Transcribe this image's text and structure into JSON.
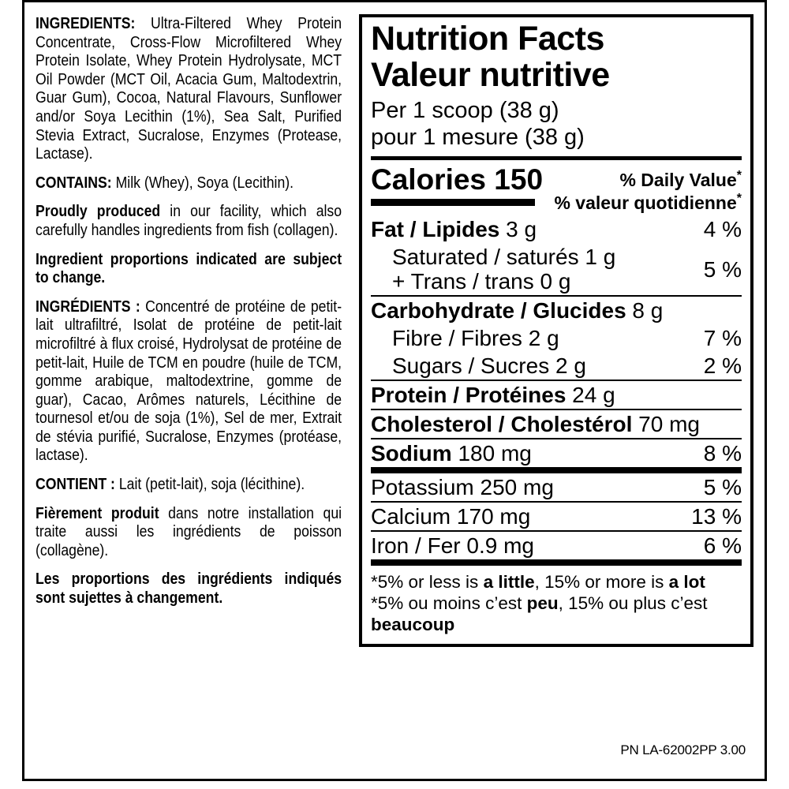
{
  "ingredients": {
    "paragraphs": [
      {
        "id": "ingredients-en",
        "lead": "INGREDIENTS:",
        "bold_all": false,
        "text": "Ultra-Filtered Whey Protein Concentrate, Cross-Flow Microfiltered Whey Protein Isolate, Whey Protein Hydrolysate, MCT Oil Powder (MCT Oil, Acacia Gum, Maltodextrin, Guar Gum), Cocoa, Natural Flavours, Sunflower and/or Soya Lecithin (1%), Sea Salt, Purified Stevia Extract, Sucralose, Enzymes (Protease, Lactase)."
      },
      {
        "id": "contains-en",
        "lead": "CONTAINS:",
        "bold_all": false,
        "text": "Milk (Whey), Soya (Lecithin)."
      },
      {
        "id": "facility-en",
        "lead": "Proudly produced",
        "bold_all": false,
        "text": "in our facility, which also carefully handles ingredients from fish (collagen)."
      },
      {
        "id": "proportions-en",
        "lead": "",
        "bold_all": true,
        "text": "Ingredient proportions indicated are subject to change."
      },
      {
        "id": "ingredients-fr",
        "lead": "INGRÉDIENTS :",
        "bold_all": false,
        "text": "Concentré de protéine de petit-lait ultrafiltré, Isolat de protéine de petit-lait microfiltré à flux croisé, Hydrolysat de protéine de petit-lait, Huile de TCM en poudre (huile de TCM, gomme arabique, maltodextrine, gomme de guar), Cacao, Arômes naturels, Lécithine de tournesol et/ou de soja (1%), Sel de mer, Extrait de stévia purifié, Sucralose, Enzymes (protéase, lactase)."
      },
      {
        "id": "contains-fr",
        "lead": "CONTIENT :",
        "bold_all": false,
        "text": "Lait (petit-lait), soja (lécithine)."
      },
      {
        "id": "facility-fr",
        "lead": "Fièrement produit",
        "bold_all": false,
        "text": "dans notre installation qui traite aussi les ingrédients de poisson (collagène)."
      },
      {
        "id": "proportions-fr",
        "lead": "",
        "bold_all": true,
        "text": "Les proportions des ingrédients indiqués sont sujettes à changement."
      }
    ]
  },
  "nutrition_panel": {
    "title_en": "Nutrition Facts",
    "title_fr": "Valeur nutritive",
    "serving_en": "Per 1 scoop (38 g)",
    "serving_fr": "pour 1 mesure (38 g)",
    "calories_label": "Calories",
    "calories_value": "150",
    "dv_header_en": "% Daily Value",
    "dv_header_fr": "% valeur quotidienne",
    "dv_asterisk": "*",
    "rows": [
      {
        "id": "fat",
        "dv": "4 %",
        "sep": "none",
        "lines": [
          {
            "text": "Fat / Lipides",
            "bold": true,
            "amount": "3 g",
            "indent": false
          }
        ]
      },
      {
        "id": "saturated-trans",
        "dv": "5 %",
        "sep": "thin",
        "lines": [
          {
            "text": "Saturated / saturés",
            "bold": false,
            "amount": "1 g",
            "indent": true
          },
          {
            "text": "+ Trans / trans",
            "bold": false,
            "amount": "0 g",
            "indent": true
          }
        ]
      },
      {
        "id": "carbohydrate",
        "dv": "",
        "sep": "none",
        "lines": [
          {
            "text": "Carbohydrate / Glucides",
            "bold": true,
            "amount": "8 g",
            "indent": false
          }
        ]
      },
      {
        "id": "fibre",
        "dv": "7 %",
        "sep": "none",
        "lines": [
          {
            "text": "Fibre / Fibres",
            "bold": false,
            "amount": "2 g",
            "indent": true
          }
        ]
      },
      {
        "id": "sugars",
        "dv": "2 %",
        "sep": "thin",
        "lines": [
          {
            "text": "Sugars / Sucres",
            "bold": false,
            "amount": "2 g",
            "indent": true
          }
        ]
      },
      {
        "id": "protein",
        "dv": "",
        "sep": "thin",
        "lines": [
          {
            "text": "Protein / Protéines",
            "bold": true,
            "amount": "24 g",
            "indent": false
          }
        ]
      },
      {
        "id": "cholesterol",
        "dv": "",
        "sep": "thin",
        "lines": [
          {
            "text": "Cholesterol / Cholestérol",
            "bold": true,
            "amount": "70 mg",
            "indent": false
          }
        ]
      },
      {
        "id": "sodium",
        "dv": "8 %",
        "sep": "thick",
        "lines": [
          {
            "text": "Sodium",
            "bold": true,
            "amount": "180 mg",
            "indent": false
          }
        ]
      },
      {
        "id": "potassium",
        "dv": "5 %",
        "sep": "thin",
        "lines": [
          {
            "text": "Potassium",
            "bold": false,
            "amount": "250 mg",
            "indent": false
          }
        ]
      },
      {
        "id": "calcium",
        "dv": "13 %",
        "sep": "thin",
        "lines": [
          {
            "text": "Calcium",
            "bold": false,
            "amount": "170 mg",
            "indent": false
          }
        ]
      },
      {
        "id": "iron",
        "dv": "6 %",
        "sep": "thick",
        "lines": [
          {
            "text": "Iron / Fer",
            "bold": false,
            "amount": "0.9 mg",
            "indent": false
          }
        ]
      }
    ],
    "footnotes": [
      {
        "id": "footnote-en",
        "segments": [
          {
            "t": "*5% or less is "
          },
          {
            "t": "a little",
            "b": true
          },
          {
            "t": ", 15% or more is "
          },
          {
            "t": "a lot",
            "b": true
          }
        ]
      },
      {
        "id": "footnote-fr",
        "segments": [
          {
            "t": "*5% ou moins c’est "
          },
          {
            "t": "peu",
            "b": true
          },
          {
            "t": ", 15% ou plus c’est "
          },
          {
            "t": "beaucoup",
            "b": true
          }
        ]
      }
    ]
  },
  "footer": {
    "part_number": "PN LA-62002PP 3.00"
  }
}
